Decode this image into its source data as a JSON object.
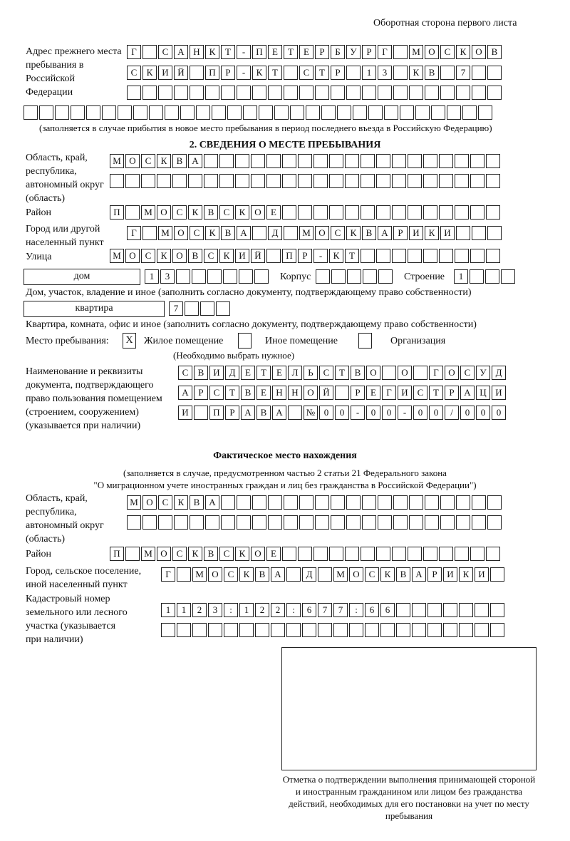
{
  "header": "Оборотная сторона первого листа",
  "prev": {
    "label": "Адрес прежнего места пребывания в Российской Федерации",
    "rows": [
      [
        "Г",
        "",
        "С",
        "А",
        "Н",
        "К",
        "Т",
        "-",
        "П",
        "Е",
        "Т",
        "Е",
        "Р",
        "Б",
        "У",
        "Р",
        "Г",
        "",
        "М",
        "О",
        "С",
        "К",
        "О",
        "В"
      ],
      [
        "С",
        "К",
        "И",
        "Й",
        "",
        "П",
        "Р",
        "-",
        "К",
        "Т",
        "",
        "С",
        "Т",
        "Р",
        "",
        "1",
        "3",
        "",
        "К",
        "В",
        "",
        "7",
        "",
        ""
      ],
      [
        "",
        "",
        "",
        "",
        "",
        "",
        "",
        "",
        "",
        "",
        "",
        "",
        "",
        "",
        "",
        "",
        "",
        "",
        "",
        "",
        "",
        "",
        "",
        ""
      ],
      [
        "",
        "",
        "",
        "",
        "",
        "",
        "",
        "",
        "",
        "",
        "",
        "",
        "",
        "",
        "",
        "",
        "",
        "",
        "",
        "",
        "",
        "",
        "",
        "",
        "",
        "",
        "",
        "",
        "",
        ""
      ]
    ],
    "note": "(заполняется в случае прибытия в новое место пребывания в период последнего въезда в Российскую Федерацию)"
  },
  "section2": {
    "title": "2. СВЕДЕНИЯ О МЕСТЕ ПРЕБЫВАНИЯ",
    "region_label": "Область, край, республика, автономный округ (область)",
    "region": [
      [
        "М",
        "О",
        "С",
        "К",
        "В",
        "А",
        "",
        "",
        "",
        "",
        "",
        "",
        "",
        "",
        "",
        "",
        "",
        "",
        "",
        "",
        "",
        "",
        "",
        "",
        ""
      ],
      [
        "",
        "",
        "",
        "",
        "",
        "",
        "",
        "",
        "",
        "",
        "",
        "",
        "",
        "",
        "",
        "",
        "",
        "",
        "",
        "",
        "",
        "",
        "",
        "",
        ""
      ]
    ],
    "district_label": "Район",
    "district": [
      "П",
      "",
      "М",
      "О",
      "С",
      "К",
      "В",
      "С",
      "К",
      "О",
      "Е",
      "",
      "",
      "",
      "",
      "",
      "",
      "",
      "",
      "",
      "",
      "",
      "",
      "",
      ""
    ],
    "city_label": "Город или другой населенный пункт",
    "city": [
      "Г",
      "",
      "М",
      "О",
      "С",
      "К",
      "В",
      "А",
      "",
      "Д",
      "",
      "М",
      "О",
      "С",
      "К",
      "В",
      "А",
      "Р",
      "И",
      "К",
      "И",
      "",
      "",
      ""
    ],
    "street_label": "Улица",
    "street": [
      "М",
      "О",
      "С",
      "К",
      "О",
      "В",
      "С",
      "К",
      "И",
      "Й",
      "",
      "П",
      "Р",
      "-",
      "К",
      "Т",
      "",
      "",
      "",
      "",
      "",
      "",
      "",
      "",
      ""
    ],
    "house_type": "дом",
    "house": [
      "1",
      "3",
      "",
      "",
      "",
      "",
      "",
      ""
    ],
    "korpus_label": "Корпус",
    "korpus": [
      "",
      "",
      "",
      "",
      ""
    ],
    "building_label": "Строение",
    "building": [
      "1",
      "",
      "",
      ""
    ],
    "house_note": "Дом, участок, владение и иное (заполнить согласно документу, подтверждающему право собственности)",
    "flat_type": "квартира",
    "flat": [
      "7",
      "",
      "",
      ""
    ],
    "flat_note": "Квартира, комната, офис и иное (заполнить согласно документу, подтверждающему право собственности)",
    "stay_label": "Место пребывания:",
    "options": [
      {
        "mark": "X",
        "label": "Жилое помещение"
      },
      {
        "mark": "",
        "label": "Иное помещение"
      },
      {
        "mark": "",
        "label": "Организация"
      }
    ],
    "choose_note": "(Необходимо выбрать нужное)",
    "doc_label": "Наименование и реквизиты документа, подтверждающего право пользования помещением (строением, сооружением) (указывается при наличии)",
    "doc": [
      [
        "С",
        "В",
        "И",
        "Д",
        "Е",
        "Т",
        "Е",
        "Л",
        "Ь",
        "С",
        "Т",
        "В",
        "О",
        "",
        "О",
        "",
        "Г",
        "О",
        "С",
        "У",
        "Д"
      ],
      [
        "А",
        "Р",
        "С",
        "Т",
        "В",
        "Е",
        "Н",
        "Н",
        "О",
        "Й",
        "",
        "Р",
        "Е",
        "Г",
        "И",
        "С",
        "Т",
        "Р",
        "А",
        "Ц",
        "И"
      ],
      [
        "И",
        "",
        "П",
        "Р",
        "А",
        "В",
        "А",
        "",
        "№",
        "0",
        "0",
        "-",
        "0",
        "0",
        "-",
        "0",
        "0",
        "/",
        "0",
        "0",
        "0"
      ]
    ]
  },
  "actual": {
    "title": "Фактическое место нахождения",
    "note1": "(заполняется в случае, предусмотренном частью 2 статьи 21 Федерального закона",
    "note2": "\"О миграционном учете иностранных граждан и лиц без гражданства в Российской Федерации\")",
    "region_label": "Область, край, республика, автономный округ (область)",
    "region": [
      [
        "М",
        "О",
        "С",
        "К",
        "В",
        "А",
        "",
        "",
        "",
        "",
        "",
        "",
        "",
        "",
        "",
        "",
        "",
        "",
        "",
        "",
        "",
        "",
        "",
        ""
      ],
      [
        "",
        "",
        "",
        "",
        "",
        "",
        "",
        "",
        "",
        "",
        "",
        "",
        "",
        "",
        "",
        "",
        "",
        "",
        "",
        "",
        "",
        "",
        "",
        ""
      ]
    ],
    "district_label": "Район",
    "district": [
      "П",
      "",
      "М",
      "О",
      "С",
      "К",
      "В",
      "С",
      "К",
      "О",
      "Е",
      "",
      "",
      "",
      "",
      "",
      "",
      "",
      "",
      "",
      "",
      "",
      "",
      "",
      ""
    ],
    "city_label": "Город, сельское поселение, иной населенный пункт",
    "city": [
      "Г",
      "",
      "М",
      "О",
      "С",
      "К",
      "В",
      "А",
      "",
      "Д",
      "",
      "М",
      "О",
      "С",
      "К",
      "В",
      "А",
      "Р",
      "И",
      "К",
      "И",
      ""
    ],
    "cadastre_label": "Кадастровый номер земельного или лесного участка (указывается при наличии)",
    "cadastre": [
      [
        "1",
        "1",
        "2",
        "3",
        ":",
        "1",
        "2",
        "2",
        ":",
        "6",
        "7",
        "7",
        ":",
        "6",
        "6",
        "",
        "",
        "",
        "",
        "",
        "",
        ""
      ],
      [
        "",
        "",
        "",
        "",
        "",
        "",
        "",
        "",
        "",
        "",
        "",
        "",
        "",
        "",
        "",
        "",
        "",
        "",
        "",
        "",
        "",
        ""
      ]
    ]
  },
  "stamp_caption": "Отметка о подтверждении выполнения принимающей стороной и иностранным гражданином или лицом без гражданства действий, необходимых для его постановки на учет по месту пребывания"
}
